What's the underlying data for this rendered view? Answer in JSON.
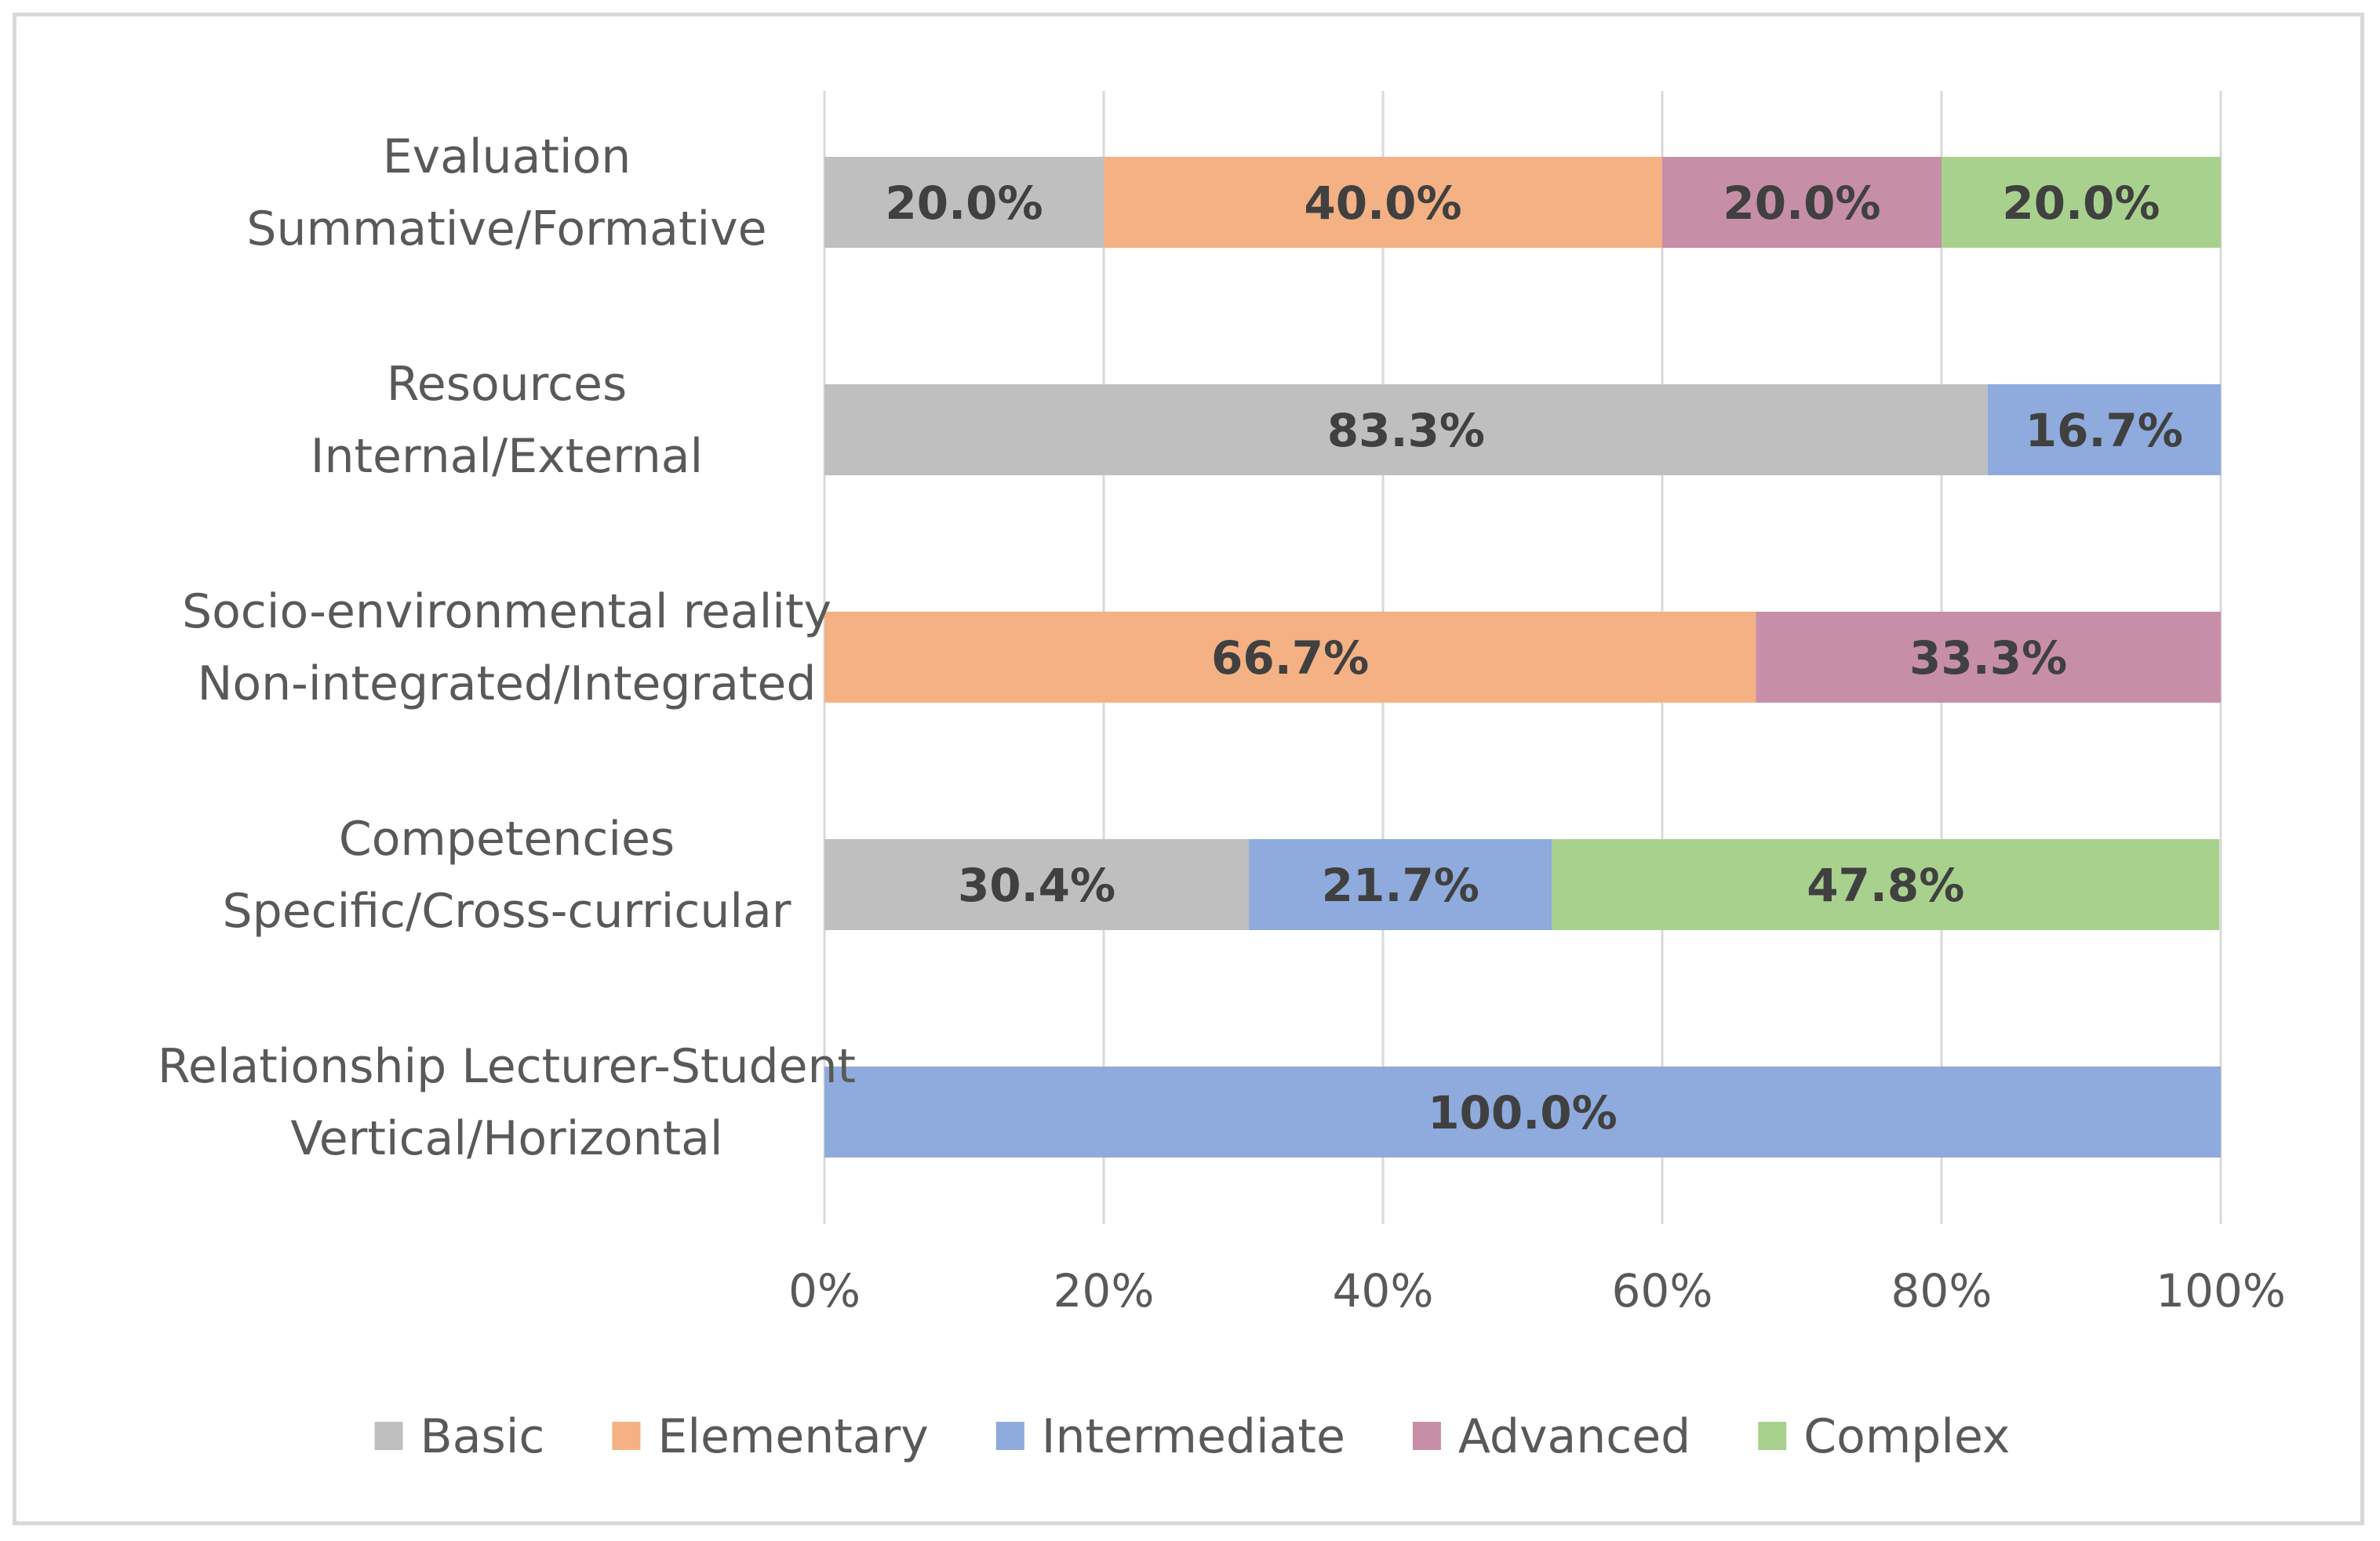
{
  "chart_data": {
    "type": "bar",
    "orientation": "horizontal",
    "stacked": "percent",
    "title": "",
    "xlabel": "",
    "ylabel": "",
    "xlim": [
      0,
      100
    ],
    "x_ticks": [
      "0%",
      "20%",
      "40%",
      "60%",
      "80%",
      "100%"
    ],
    "grid": true,
    "legend_position": "bottom",
    "categories": [
      [
        "Evaluation",
        "Summative/Formative"
      ],
      [
        "Resources",
        "Internal/External"
      ],
      [
        "Socio-environmental reality",
        "Non-integrated/Integrated"
      ],
      [
        "Competencies",
        "Specific/Cross-curricular"
      ],
      [
        "Relationship Lecturer-Student",
        "Vertical/Horizontal"
      ]
    ],
    "series": [
      {
        "name": "Basic",
        "color": "#bfbfbf",
        "values": [
          20.0,
          83.3,
          0,
          30.4,
          0
        ],
        "labels": [
          "20.0%",
          "83.3%",
          "",
          "30.4%",
          ""
        ]
      },
      {
        "name": "Elementary",
        "color": "#f4b183",
        "values": [
          40.0,
          0,
          66.7,
          0,
          0
        ],
        "labels": [
          "40.0%",
          "",
          "66.7%",
          "",
          ""
        ]
      },
      {
        "name": "Intermediate",
        "color": "#8faadc",
        "values": [
          0,
          16.7,
          0,
          21.7,
          100.0
        ],
        "labels": [
          "",
          "16.7%",
          "",
          "21.7%",
          "100.0%"
        ]
      },
      {
        "name": "Advanced",
        "color": "#c78ea8",
        "values": [
          20.0,
          0,
          33.3,
          0,
          0
        ],
        "labels": [
          "20.0%",
          "",
          "33.3%",
          "",
          ""
        ]
      },
      {
        "name": "Complex",
        "color": "#a9d18e",
        "values": [
          20.0,
          0,
          0,
          47.8,
          0
        ],
        "labels": [
          "20.0%",
          "",
          "",
          "47.8%",
          ""
        ]
      }
    ]
  }
}
